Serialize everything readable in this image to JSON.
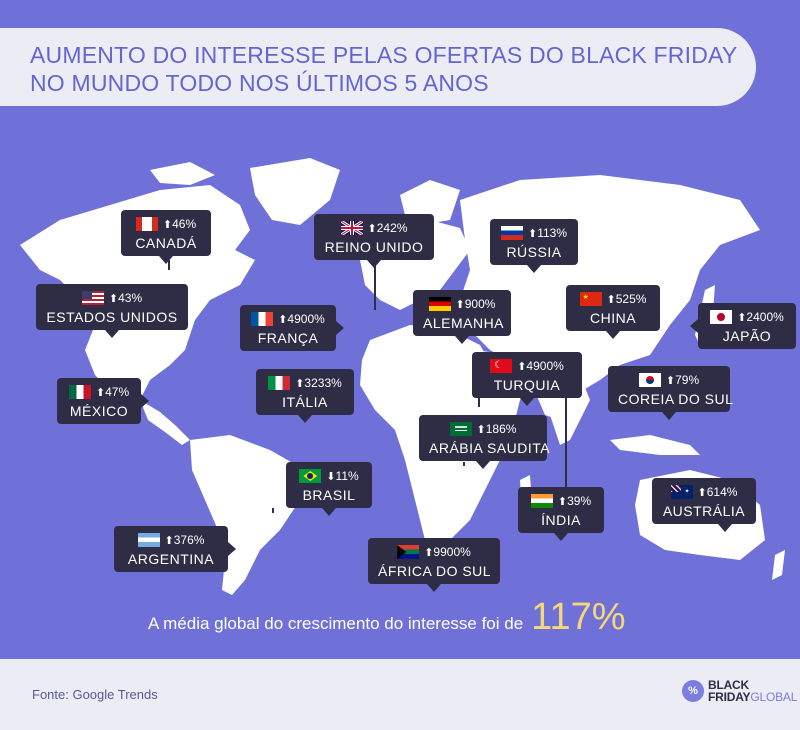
{
  "title": {
    "line1": "AUMENTO DO INTERESSE PELAS OFERTAS DO BLACK FRIDAY",
    "line2": "NO MUNDO TODO NOS ÚLTIMOS 5 ANOS"
  },
  "countries": [
    {
      "key": "canada",
      "name": "CANADÁ",
      "pct": "46%",
      "direction": "up",
      "flag": "canada-flag-icon"
    },
    {
      "key": "reino-unido",
      "name": "REINO UNIDO",
      "pct": "242%",
      "direction": "up",
      "flag": "uk-flag-icon"
    },
    {
      "key": "russia",
      "name": "RÚSSIA",
      "pct": "113%",
      "direction": "up",
      "flag": "russia-flag-icon"
    },
    {
      "key": "estados-unidos",
      "name": "ESTADOS UNIDOS",
      "pct": "43%",
      "direction": "up",
      "flag": "usa-flag-icon"
    },
    {
      "key": "franca",
      "name": "FRANÇA",
      "pct": "4900%",
      "direction": "up",
      "flag": "france-flag-icon"
    },
    {
      "key": "alemanha",
      "name": "ALEMANHA",
      "pct": "900%",
      "direction": "up",
      "flag": "germany-flag-icon"
    },
    {
      "key": "china",
      "name": "CHINA",
      "pct": "525%",
      "direction": "up",
      "flag": "china-flag-icon"
    },
    {
      "key": "japao",
      "name": "JAPÃO",
      "pct": "2400%",
      "direction": "up",
      "flag": "japan-flag-icon"
    },
    {
      "key": "mexico",
      "name": "MÉXICO",
      "pct": "47%",
      "direction": "up",
      "flag": "mexico-flag-icon"
    },
    {
      "key": "italia",
      "name": "ITÁLIA",
      "pct": "3233%",
      "direction": "up",
      "flag": "italy-flag-icon"
    },
    {
      "key": "turquia",
      "name": "TURQUIA",
      "pct": "4900%",
      "direction": "up",
      "flag": "turkey-flag-icon"
    },
    {
      "key": "coreia-do-sul",
      "name": "COREIA DO SUL",
      "pct": "79%",
      "direction": "up",
      "flag": "south-korea-flag-icon"
    },
    {
      "key": "arabia-saudita",
      "name": "ARÁBIA SAUDITA",
      "pct": "186%",
      "direction": "up",
      "flag": "saudi-arabia-flag-icon"
    },
    {
      "key": "brasil",
      "name": "BRASIL",
      "pct": "11%",
      "direction": "down",
      "flag": "brazil-flag-icon"
    },
    {
      "key": "india",
      "name": "ÍNDIA",
      "pct": "39%",
      "direction": "up",
      "flag": "india-flag-icon"
    },
    {
      "key": "australia",
      "name": "AUSTRÁLIA",
      "pct": "614%",
      "direction": "up",
      "flag": "australia-flag-icon"
    },
    {
      "key": "argentina",
      "name": "ARGENTINA",
      "pct": "376%",
      "direction": "up",
      "flag": "argentina-flag-icon"
    },
    {
      "key": "africa-do-sul",
      "name": "ÁFRICA DO SUL",
      "pct": "9900%",
      "direction": "up",
      "flag": "south-africa-flag-icon"
    }
  ],
  "average": {
    "text": "A média global do crescimento do interesse foi de",
    "value": "117%"
  },
  "footer": {
    "source": "Fonte: Google Trends",
    "logo_badge": "%",
    "logo_line1": "BLACK",
    "logo_line2a": "FRIDAY",
    "logo_line2b": "GLOBAL"
  },
  "colors": {
    "background": "#6f71d9",
    "land": "#ffffff",
    "title": "#6366cf",
    "tooltip": "#2e2d45",
    "highlight": "#f5d77a"
  }
}
